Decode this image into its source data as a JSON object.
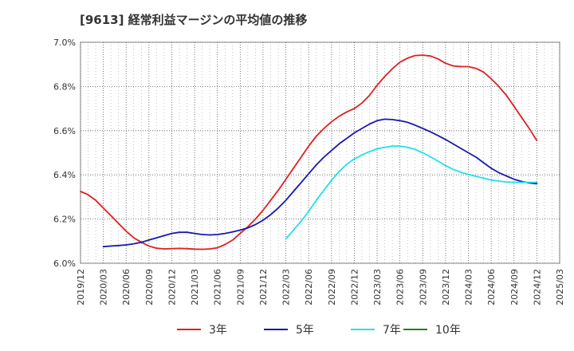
{
  "chart_data": {
    "type": "line",
    "title": "[9613]  経常利益マージンの平均値の推移",
    "xlabel": "",
    "ylabel": "",
    "ylim": [
      6.0,
      7.0
    ],
    "y_ticks": [
      "6.0%",
      "6.2%",
      "6.4%",
      "6.6%",
      "6.8%",
      "7.0%"
    ],
    "x_ticks": [
      "2019/12",
      "2020/03",
      "2020/06",
      "2020/09",
      "2020/12",
      "2021/03",
      "2021/06",
      "2021/09",
      "2021/12",
      "2022/03",
      "2022/06",
      "2022/09",
      "2022/12",
      "2023/03",
      "2023/06",
      "2023/09",
      "2023/12",
      "2024/03",
      "2024/06",
      "2024/09",
      "2024/12",
      "2025/03"
    ],
    "x_start": "2019/12",
    "grid": true,
    "legend_position": "bottom",
    "series": [
      {
        "name": "3年",
        "color": "#dd2020",
        "x": [
          "2019/12",
          "2020/01",
          "2020/02",
          "2020/03",
          "2020/04",
          "2020/05",
          "2020/06",
          "2020/07",
          "2020/08",
          "2020/09",
          "2020/10",
          "2020/11",
          "2020/12",
          "2021/01",
          "2021/02",
          "2021/03",
          "2021/04",
          "2021/05",
          "2021/06",
          "2021/07",
          "2021/08",
          "2021/09",
          "2021/10",
          "2021/11",
          "2021/12",
          "2022/01",
          "2022/02",
          "2022/03",
          "2022/04",
          "2022/05",
          "2022/06",
          "2022/07",
          "2022/08",
          "2022/09",
          "2022/10",
          "2022/11",
          "2022/12",
          "2023/01",
          "2023/02",
          "2023/03",
          "2023/04",
          "2023/05",
          "2023/06",
          "2023/07",
          "2023/08",
          "2023/09",
          "2023/10",
          "2023/11",
          "2023/12",
          "2024/01",
          "2024/02",
          "2024/03",
          "2024/04",
          "2024/05",
          "2024/06",
          "2024/07",
          "2024/08",
          "2024/09",
          "2024/10",
          "2024/11",
          "2024/12"
        ],
        "values": [
          6.325,
          6.31,
          6.285,
          6.25,
          6.215,
          6.18,
          6.145,
          6.115,
          6.095,
          6.078,
          6.068,
          6.065,
          6.066,
          6.067,
          6.066,
          6.064,
          6.063,
          6.065,
          6.07,
          6.085,
          6.105,
          6.135,
          6.165,
          6.2,
          6.24,
          6.285,
          6.33,
          6.38,
          6.43,
          6.48,
          6.53,
          6.575,
          6.61,
          6.64,
          6.665,
          6.685,
          6.7,
          6.725,
          6.76,
          6.805,
          6.845,
          6.88,
          6.91,
          6.928,
          6.94,
          6.942,
          6.938,
          6.925,
          6.905,
          6.893,
          6.89,
          6.89,
          6.882,
          6.865,
          6.835,
          6.8,
          6.76,
          6.71,
          6.66,
          6.61,
          6.555
        ]
      },
      {
        "name": "5年",
        "color": "#1818b0",
        "x": [
          "2020/03",
          "2020/04",
          "2020/05",
          "2020/06",
          "2020/07",
          "2020/08",
          "2020/09",
          "2020/10",
          "2020/11",
          "2020/12",
          "2021/01",
          "2021/02",
          "2021/03",
          "2021/04",
          "2021/05",
          "2021/06",
          "2021/07",
          "2021/08",
          "2021/09",
          "2021/10",
          "2021/11",
          "2021/12",
          "2022/01",
          "2022/02",
          "2022/03",
          "2022/04",
          "2022/05",
          "2022/06",
          "2022/07",
          "2022/08",
          "2022/09",
          "2022/10",
          "2022/11",
          "2022/12",
          "2023/01",
          "2023/02",
          "2023/03",
          "2023/04",
          "2023/05",
          "2023/06",
          "2023/07",
          "2023/08",
          "2023/09",
          "2023/10",
          "2023/11",
          "2023/12",
          "2024/01",
          "2024/02",
          "2024/03",
          "2024/04",
          "2024/05",
          "2024/06",
          "2024/07",
          "2024/08",
          "2024/09",
          "2024/10",
          "2024/11",
          "2024/12"
        ],
        "values": [
          6.075,
          6.078,
          6.08,
          6.083,
          6.088,
          6.095,
          6.105,
          6.115,
          6.125,
          6.135,
          6.14,
          6.14,
          6.135,
          6.13,
          6.128,
          6.13,
          6.135,
          6.142,
          6.15,
          6.16,
          6.175,
          6.195,
          6.22,
          6.25,
          6.285,
          6.325,
          6.365,
          6.405,
          6.445,
          6.48,
          6.51,
          6.54,
          6.565,
          6.59,
          6.61,
          6.63,
          6.645,
          6.652,
          6.65,
          6.645,
          6.638,
          6.625,
          6.61,
          6.595,
          6.578,
          6.56,
          6.54,
          6.52,
          6.5,
          6.48,
          6.455,
          6.43,
          6.41,
          6.395,
          6.38,
          6.37,
          6.363,
          6.36
        ]
      },
      {
        "name": "7年",
        "color": "#22e0e8",
        "x": [
          "2022/03",
          "2022/04",
          "2022/05",
          "2022/06",
          "2022/07",
          "2022/08",
          "2022/09",
          "2022/10",
          "2022/11",
          "2022/12",
          "2023/01",
          "2023/02",
          "2023/03",
          "2023/04",
          "2023/05",
          "2023/06",
          "2023/07",
          "2023/08",
          "2023/09",
          "2023/10",
          "2023/11",
          "2023/12",
          "2024/01",
          "2024/02",
          "2024/03",
          "2024/04",
          "2024/05",
          "2024/06",
          "2024/07",
          "2024/08",
          "2024/09",
          "2024/10",
          "2024/11",
          "2024/12"
        ],
        "values": [
          6.11,
          6.15,
          6.19,
          6.235,
          6.285,
          6.33,
          6.375,
          6.415,
          6.448,
          6.472,
          6.49,
          6.505,
          6.518,
          6.525,
          6.53,
          6.53,
          6.525,
          6.515,
          6.5,
          6.482,
          6.462,
          6.442,
          6.425,
          6.412,
          6.402,
          6.393,
          6.385,
          6.377,
          6.372,
          6.368,
          6.366,
          6.366,
          6.366,
          6.366
        ]
      },
      {
        "name": "10年",
        "color": "#208020",
        "x": [],
        "values": []
      }
    ]
  }
}
